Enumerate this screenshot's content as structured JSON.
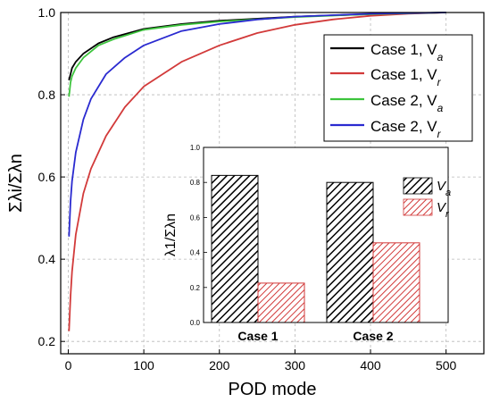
{
  "chart_data": [
    {
      "type": "line",
      "title": "",
      "xlabel": "POD mode",
      "ylabel": "Σλi/Σλn",
      "xlim": [
        -10,
        550
      ],
      "ylim": [
        0.17,
        1.0
      ],
      "xticks": [
        0,
        100,
        200,
        300,
        400,
        500
      ],
      "xtick_labels": [
        "0",
        "100",
        "200",
        "300",
        "400",
        "500"
      ],
      "yticks": [
        0.2,
        0.4,
        0.6,
        0.8,
        1.0
      ],
      "ytick_labels": [
        "0.2",
        "0.4",
        "0.6",
        "0.8",
        "1.0"
      ],
      "grid": true,
      "legend_position": "top-right",
      "series": [
        {
          "name": "Case 1, V",
          "name_sub": "a",
          "color": "#000000",
          "x": [
            1,
            3,
            5,
            10,
            20,
            40,
            60,
            100,
            150,
            200,
            300,
            400,
            500
          ],
          "y": [
            0.835,
            0.85,
            0.865,
            0.88,
            0.9,
            0.925,
            0.94,
            0.96,
            0.972,
            0.98,
            0.99,
            0.996,
            1.0
          ]
        },
        {
          "name": "Case 1, V",
          "name_sub": "r",
          "color": "#d23a3a",
          "x": [
            1,
            3,
            5,
            10,
            20,
            30,
            50,
            75,
            100,
            150,
            200,
            250,
            300,
            350,
            400,
            450,
            500
          ],
          "y": [
            0.225,
            0.31,
            0.37,
            0.46,
            0.56,
            0.62,
            0.7,
            0.77,
            0.82,
            0.88,
            0.92,
            0.95,
            0.97,
            0.983,
            0.992,
            0.997,
            1.0
          ]
        },
        {
          "name": "Case 2, V",
          "name_sub": "a",
          "color": "#3cc43c",
          "x": [
            1,
            3,
            5,
            10,
            20,
            40,
            60,
            100,
            150,
            200,
            300,
            400,
            500
          ],
          "y": [
            0.795,
            0.83,
            0.845,
            0.865,
            0.89,
            0.92,
            0.935,
            0.958,
            0.97,
            0.978,
            0.989,
            0.996,
            1.0
          ]
        },
        {
          "name": "Case 2, V",
          "name_sub": "r",
          "color": "#2a2ad0",
          "x": [
            1,
            3,
            5,
            10,
            20,
            30,
            50,
            75,
            100,
            150,
            200,
            250,
            300,
            400,
            500
          ],
          "y": [
            0.455,
            0.54,
            0.59,
            0.66,
            0.74,
            0.79,
            0.85,
            0.89,
            0.92,
            0.955,
            0.972,
            0.983,
            0.99,
            0.997,
            1.0
          ]
        }
      ]
    },
    {
      "type": "bar",
      "title": "",
      "xlabel": "",
      "ylabel": "λ1/Σλn",
      "categories": [
        "Case 1",
        "Case 2"
      ],
      "ylim": [
        0,
        1.0
      ],
      "yticks": [
        0.0,
        0.2,
        0.4,
        0.6,
        0.8,
        1.0
      ],
      "ytick_labels": [
        "0.0",
        "0.2",
        "0.4",
        "0.6",
        "0.8",
        "1.0"
      ],
      "legend_position": "top-right",
      "series": [
        {
          "name": "V",
          "name_sub": "a",
          "pattern": "black-hatch",
          "values": [
            0.84,
            0.8
          ]
        },
        {
          "name": "V",
          "name_sub": "r",
          "pattern": "red-hatch",
          "values": [
            0.225,
            0.455
          ]
        }
      ]
    }
  ]
}
